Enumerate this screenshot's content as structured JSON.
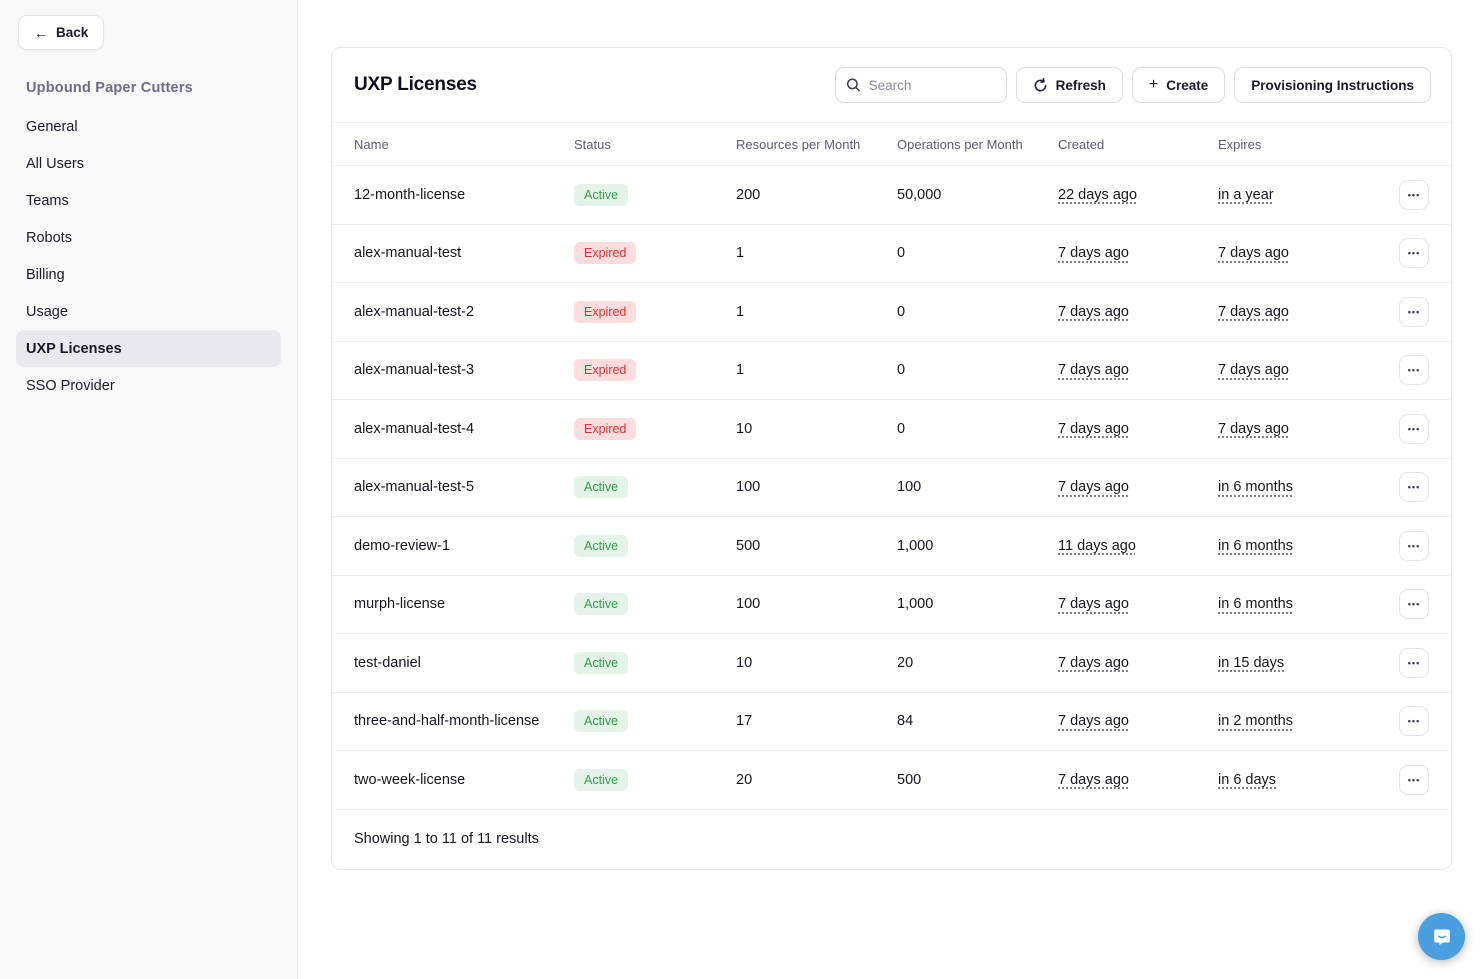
{
  "sidebar": {
    "back_label": "Back",
    "org_title": "Upbound Paper Cutters",
    "items": [
      {
        "label": "General",
        "active": false
      },
      {
        "label": "All Users",
        "active": false
      },
      {
        "label": "Teams",
        "active": false
      },
      {
        "label": "Robots",
        "active": false
      },
      {
        "label": "Billing",
        "active": false
      },
      {
        "label": "Usage",
        "active": false
      },
      {
        "label": "UXP Licenses",
        "active": true
      },
      {
        "label": "SSO Provider",
        "active": false
      }
    ]
  },
  "header": {
    "title": "UXP Licenses",
    "search_placeholder": "Search",
    "refresh_label": "Refresh",
    "create_label": "Create",
    "provisioning_label": "Provisioning Instructions"
  },
  "table": {
    "columns": [
      "Name",
      "Status",
      "Resources per Month",
      "Operations per Month",
      "Created",
      "Expires"
    ],
    "rows": [
      {
        "name": "12-month-license",
        "status": "Active",
        "resources": "200",
        "operations": "50,000",
        "created": "22 days ago",
        "expires": "in a year"
      },
      {
        "name": "alex-manual-test",
        "status": "Expired",
        "resources": "1",
        "operations": "0",
        "created": "7 days ago",
        "expires": "7 days ago"
      },
      {
        "name": "alex-manual-test-2",
        "status": "Expired",
        "resources": "1",
        "operations": "0",
        "created": "7 days ago",
        "expires": "7 days ago"
      },
      {
        "name": "alex-manual-test-3",
        "status": "Expired",
        "resources": "1",
        "operations": "0",
        "created": "7 days ago",
        "expires": "7 days ago"
      },
      {
        "name": "alex-manual-test-4",
        "status": "Expired",
        "resources": "10",
        "operations": "0",
        "created": "7 days ago",
        "expires": "7 days ago"
      },
      {
        "name": "alex-manual-test-5",
        "status": "Active",
        "resources": "100",
        "operations": "100",
        "created": "7 days ago",
        "expires": "in 6 months"
      },
      {
        "name": "demo-review-1",
        "status": "Active",
        "resources": "500",
        "operations": "1,000",
        "created": "11 days ago",
        "expires": "in 6 months"
      },
      {
        "name": "murph-license",
        "status": "Active",
        "resources": "100",
        "operations": "1,000",
        "created": "7 days ago",
        "expires": "in 6 months"
      },
      {
        "name": "test-daniel",
        "status": "Active",
        "resources": "10",
        "operations": "20",
        "created": "7 days ago",
        "expires": "in 15 days"
      },
      {
        "name": "three-and-half-month-license",
        "status": "Active",
        "resources": "17",
        "operations": "84",
        "created": "7 days ago",
        "expires": "in 2 months"
      },
      {
        "name": "two-week-license",
        "status": "Active",
        "resources": "20",
        "operations": "500",
        "created": "7 days ago",
        "expires": "in 6 days"
      }
    ],
    "footer_summary": "Showing 1 to 11 of 11 results"
  },
  "icons": {
    "back_arrow": "←",
    "plus": "+",
    "ellipsis": "•••"
  },
  "colors": {
    "status_active_text": "#2f9e44",
    "status_active_bg": "#e3f3e8",
    "status_expired_text": "#e03131",
    "status_expired_bg": "#fcdcdc",
    "intercom_blue": "#4a9fe0",
    "sidebar_bg": "#f8f8f9",
    "active_nav_bg": "#e9e9ed"
  }
}
